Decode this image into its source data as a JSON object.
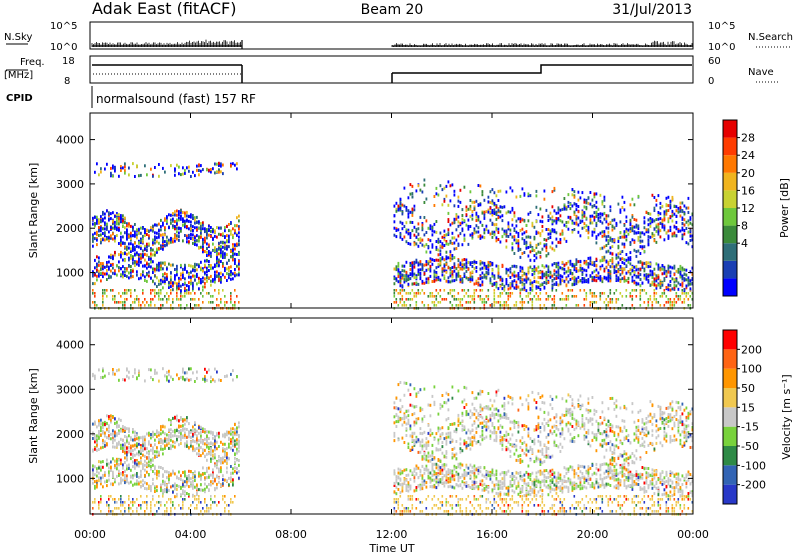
{
  "header": {
    "station": "Adak East (fitACF)",
    "beam": "Beam 20",
    "date": "31/Jul/2013"
  },
  "housekeeping": {
    "nsky_label": "N.Sky",
    "nsky_ticks": [
      "10^5",
      "10^0"
    ],
    "nsearch_label": "N.Search",
    "nsearch_ticks": [
      "10^5",
      "10^0"
    ],
    "freq_label_1": "Freq.",
    "freq_label_2": "[MHz]",
    "freq_ticks": [
      "18",
      "8"
    ],
    "nave_label": "Nave",
    "nave_ticks": [
      "60",
      "0"
    ],
    "cpid_label": "CPID",
    "cpid_text": "normalsound (fast) 157 RF"
  },
  "chart_data": [
    {
      "type": "heatmap",
      "name": "power-panel",
      "ylabel": "Slant Range [km]",
      "yticks": [
        "4000",
        "3000",
        "2000",
        "1000"
      ],
      "ytick_values": [
        4000,
        3000,
        2000,
        1000
      ],
      "ylim": [
        200,
        4600
      ],
      "xlim": [
        0,
        24
      ],
      "colorbar": {
        "label": "Power [dB]",
        "ticks": [
          "28",
          "24",
          "20",
          "16",
          "12",
          "8",
          "4"
        ],
        "colors": [
          "#0000ff",
          "#1a3fb4",
          "#2e6e78",
          "#3a8a3a",
          "#6ec83c",
          "#c8d232",
          "#f0b41e",
          "#ff7800",
          "#ff3c00",
          "#e60000"
        ]
      },
      "data_coverage_hours": [
        [
          0,
          6
        ],
        [
          12,
          24
        ]
      ]
    },
    {
      "type": "heatmap",
      "name": "velocity-panel",
      "ylabel": "Slant Range [km]",
      "yticks": [
        "4000",
        "3000",
        "2000",
        "1000"
      ],
      "ytick_values": [
        4000,
        3000,
        2000,
        1000
      ],
      "ylim": [
        200,
        4600
      ],
      "xlim": [
        0,
        24
      ],
      "colorbar": {
        "label": "Velocity [m s⁻¹]",
        "ticks": [
          "200",
          "100",
          "50",
          "15",
          "-15",
          "-50",
          "-100",
          "-200"
        ],
        "colors": [
          "#2838c8",
          "#3264b4",
          "#2e8a46",
          "#78d23c",
          "#c8c8c8",
          "#f0c850",
          "#ff9600",
          "#ff6414",
          "#ff0000"
        ]
      },
      "data_coverage_hours": [
        [
          0,
          6
        ],
        [
          12,
          24
        ]
      ]
    }
  ],
  "time_axis": {
    "ticks": [
      "00:00",
      "04:00",
      "08:00",
      "12:00",
      "16:00",
      "20:00",
      "00:00"
    ],
    "tick_hours": [
      0,
      4,
      8,
      12,
      16,
      20,
      24
    ],
    "label": "Time UT"
  }
}
